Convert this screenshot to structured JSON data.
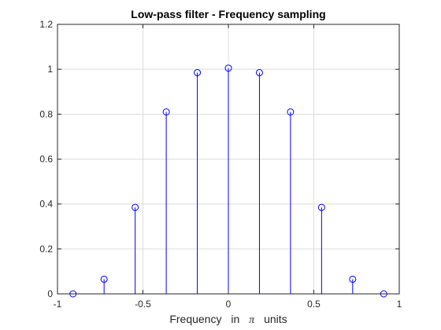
{
  "chart_data": {
    "type": "stem",
    "title": "Low-pass filter - Frequency sampling",
    "xlabel_parts": [
      "Frequency",
      "in",
      "π",
      "units"
    ],
    "ylabel": "",
    "xlim": [
      -1,
      1
    ],
    "ylim": [
      0,
      1.2
    ],
    "xticks": [
      -1,
      -0.5,
      0,
      0.5,
      1
    ],
    "xtick_labels": [
      "-1",
      "-0.5",
      "0",
      "0.5",
      "1"
    ],
    "yticks": [
      0,
      0.2,
      0.4,
      0.6,
      0.8,
      1,
      1.2
    ],
    "ytick_labels": [
      "0",
      "0.2",
      "0.4",
      "0.6",
      "0.8",
      "1",
      "1.2"
    ],
    "grid": true,
    "series": [
      {
        "x": [
          -0.9091,
          -0.7273,
          -0.5455,
          -0.3636,
          -0.1818,
          0,
          0.1818,
          0.3636,
          0.5455,
          0.7273,
          0.9091
        ],
        "y": [
          0.0,
          0.065,
          0.385,
          0.81,
          0.985,
          1.005,
          0.985,
          0.81,
          0.385,
          0.065,
          0.0
        ]
      }
    ],
    "colors": {
      "stem": "#0000ff",
      "grid": "#dcdcdc",
      "axes": "#262626"
    }
  }
}
